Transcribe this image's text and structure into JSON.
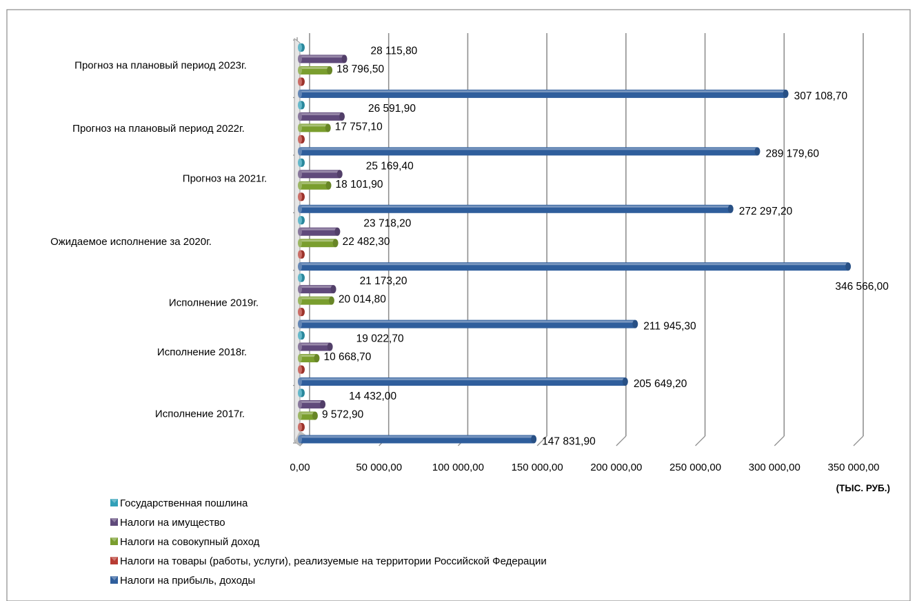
{
  "chart_data": {
    "type": "bar",
    "orientation": "horizontal",
    "categories": [
      "Исполнение 2017г.",
      "Исполнение 2018г.",
      "Исполнение   2019г.",
      "Ожидаемое исполнение за  2020г.",
      "Прогноз на 2021г.",
      "Прогноз на плановый период 2022г.",
      "Прогноз на плановый период 2023г."
    ],
    "series": [
      {
        "name": "Налоги на прибыль, доходы",
        "color": "#2f5e9c",
        "values": [
          147831.9,
          205649.2,
          211945.3,
          346566.0,
          272297.2,
          289179.6,
          307108.7
        ],
        "labels": [
          "147 831,90",
          "205 649,20",
          "211 945,30",
          "346 566,00",
          "272 297,20",
          "289 179,60",
          "307 108,70"
        ]
      },
      {
        "name": "Налоги на товары (работы, услуги), реализуемые на территории Российской Федерации",
        "color": "#b83c33",
        "values": [
          0,
          0,
          0,
          0,
          0,
          0,
          0
        ],
        "labels": []
      },
      {
        "name": "Налоги на совокупный доход",
        "color": "#7a9e2e",
        "values": [
          9572.9,
          10668.7,
          20014.8,
          22482.3,
          18101.9,
          17757.1,
          18796.5
        ],
        "labels": [
          "9 572,90",
          "10 668,70",
          "20 014,80",
          "22 482,30",
          "18 101,90",
          "17 757,10",
          "18 796,50"
        ]
      },
      {
        "name": "Налоги на имущество",
        "color": "#604a7b",
        "values": [
          14432.0,
          19022.7,
          21173.2,
          23718.2,
          25169.4,
          26591.9,
          28115.8
        ],
        "labels": [
          "14 432,00",
          "19 022,70",
          "21 173,20",
          "23 718,20",
          "25 169,40",
          "26 591,90",
          "28 115,80"
        ]
      },
      {
        "name": "Государственная пошлина",
        "color": "#31a0b8",
        "values": [
          0,
          0,
          0,
          0,
          0,
          0,
          0
        ],
        "labels": []
      }
    ],
    "xlim": [
      0,
      350000
    ],
    "x_ticks": [
      "0,00",
      "50 000,00",
      "100 000,00",
      "150 000,00",
      "200 000,00",
      "250 000,00",
      "300 000,00",
      "350 000,00"
    ],
    "unit_label": "(ТЫС. РУБ.)",
    "grid": true,
    "legend_position": "bottom-left",
    "legend_order": [
      "Государственная пошлина",
      "Налоги на имущество",
      "Налоги на совокупный доход",
      "Налоги на товары (работы, услуги), реализуемые на территории Российской Федерации",
      "Налоги на прибыль, доходы"
    ]
  }
}
